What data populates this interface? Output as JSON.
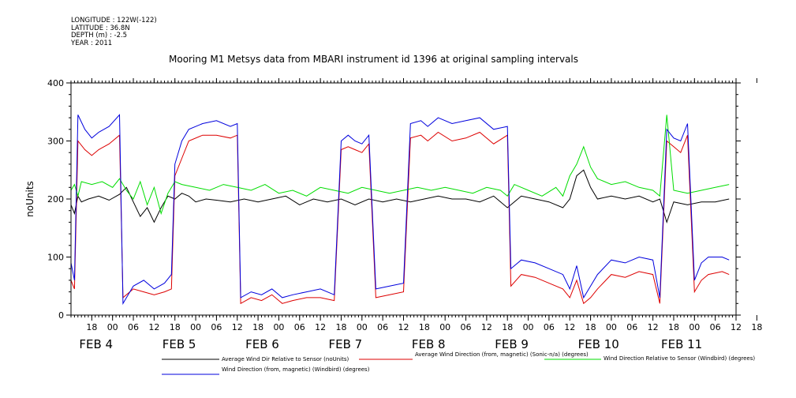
{
  "metadata": {
    "longitude": "LONGITUDE : 122W(-122)",
    "latitude": "LATITUDE : 36.8N",
    "depth": "DEPTH (m) : -2.5",
    "year": "YEAR : 2011"
  },
  "chart_data": {
    "type": "line",
    "title": "Mooring M1 Metsys data from MBARI instrument id 1396 at original sampling intervals",
    "ylabel": "noUnits",
    "xlabel": "",
    "ylim": [
      0,
      400
    ],
    "yticks": [
      0,
      100,
      200,
      300,
      400
    ],
    "xlim": [
      -6,
      186
    ],
    "hour_ticks": [
      "18",
      "00",
      "06",
      "12",
      "18",
      "00",
      "06",
      "12",
      "18",
      "00",
      "06",
      "12",
      "18",
      "00",
      "06",
      "12",
      "18",
      "00",
      "06",
      "12",
      "18",
      "00",
      "06",
      "12",
      "18",
      "00",
      "06",
      "12",
      "18",
      "00",
      "06",
      "12",
      "18"
    ],
    "day_labels": [
      {
        "label": "FEB  4",
        "x": 0
      },
      {
        "label": "FEB  5",
        "x": 24
      },
      {
        "label": "FEB  6",
        "x": 48
      },
      {
        "label": "FEB  7",
        "x": 72
      },
      {
        "label": "FEB  8",
        "x": 96
      },
      {
        "label": "FEB  9",
        "x": 120
      },
      {
        "label": "FEB 10",
        "x": 144
      },
      {
        "label": "FEB 11",
        "x": 168
      }
    ],
    "grid": false,
    "legend_position": "bottom",
    "series": [
      {
        "name": "Average Wind Dir Relative to Sensor (noUnits)",
        "color": "#000000",
        "points": [
          [
            -6,
            190
          ],
          [
            -5,
            175
          ],
          [
            -4,
            205
          ],
          [
            -3,
            195
          ],
          [
            -1,
            200
          ],
          [
            2,
            205
          ],
          [
            5,
            198
          ],
          [
            8,
            208
          ],
          [
            10,
            220
          ],
          [
            12,
            195
          ],
          [
            14,
            170
          ],
          [
            16,
            185
          ],
          [
            18,
            160
          ],
          [
            20,
            185
          ],
          [
            22,
            205
          ],
          [
            24,
            200
          ],
          [
            26,
            210
          ],
          [
            28,
            205
          ],
          [
            30,
            195
          ],
          [
            33,
            200
          ],
          [
            36,
            198
          ],
          [
            40,
            195
          ],
          [
            44,
            200
          ],
          [
            48,
            195
          ],
          [
            52,
            200
          ],
          [
            56,
            205
          ],
          [
            60,
            190
          ],
          [
            64,
            200
          ],
          [
            68,
            195
          ],
          [
            72,
            200
          ],
          [
            76,
            190
          ],
          [
            80,
            200
          ],
          [
            84,
            195
          ],
          [
            88,
            200
          ],
          [
            92,
            195
          ],
          [
            96,
            200
          ],
          [
            100,
            205
          ],
          [
            104,
            200
          ],
          [
            108,
            200
          ],
          [
            112,
            195
          ],
          [
            116,
            205
          ],
          [
            120,
            185
          ],
          [
            124,
            205
          ],
          [
            128,
            200
          ],
          [
            132,
            195
          ],
          [
            136,
            185
          ],
          [
            138,
            200
          ],
          [
            140,
            240
          ],
          [
            142,
            250
          ],
          [
            144,
            220
          ],
          [
            146,
            200
          ],
          [
            150,
            205
          ],
          [
            154,
            200
          ],
          [
            158,
            205
          ],
          [
            162,
            195
          ],
          [
            164,
            200
          ],
          [
            166,
            160
          ],
          [
            168,
            195
          ],
          [
            172,
            190
          ],
          [
            176,
            195
          ],
          [
            180,
            195
          ],
          [
            184,
            200
          ]
        ]
      },
      {
        "name": "Average Wind Direction (from, magnetic) (Sonic-n/a) (degrees)",
        "color": "#dd0000",
        "points": [
          [
            -6,
            60
          ],
          [
            -5,
            45
          ],
          [
            -4,
            300
          ],
          [
            -2,
            285
          ],
          [
            0,
            275
          ],
          [
            2,
            285
          ],
          [
            5,
            295
          ],
          [
            8,
            310
          ],
          [
            9,
            30
          ],
          [
            12,
            45
          ],
          [
            15,
            40
          ],
          [
            18,
            35
          ],
          [
            21,
            40
          ],
          [
            23,
            45
          ],
          [
            24,
            240
          ],
          [
            26,
            270
          ],
          [
            28,
            300
          ],
          [
            32,
            310
          ],
          [
            36,
            310
          ],
          [
            40,
            305
          ],
          [
            42,
            310
          ],
          [
            43,
            20
          ],
          [
            46,
            30
          ],
          [
            49,
            25
          ],
          [
            52,
            35
          ],
          [
            55,
            20
          ],
          [
            58,
            25
          ],
          [
            62,
            30
          ],
          [
            66,
            30
          ],
          [
            70,
            25
          ],
          [
            72,
            285
          ],
          [
            74,
            290
          ],
          [
            76,
            285
          ],
          [
            78,
            280
          ],
          [
            80,
            295
          ],
          [
            82,
            30
          ],
          [
            86,
            35
          ],
          [
            90,
            40
          ],
          [
            92,
            305
          ],
          [
            95,
            310
          ],
          [
            97,
            300
          ],
          [
            100,
            315
          ],
          [
            104,
            300
          ],
          [
            108,
            305
          ],
          [
            112,
            315
          ],
          [
            116,
            295
          ],
          [
            120,
            310
          ],
          [
            121,
            50
          ],
          [
            124,
            70
          ],
          [
            128,
            65
          ],
          [
            132,
            55
          ],
          [
            136,
            45
          ],
          [
            138,
            30
          ],
          [
            140,
            60
          ],
          [
            142,
            20
          ],
          [
            144,
            30
          ],
          [
            146,
            45
          ],
          [
            150,
            70
          ],
          [
            154,
            65
          ],
          [
            158,
            75
          ],
          [
            162,
            70
          ],
          [
            164,
            20
          ],
          [
            166,
            300
          ],
          [
            168,
            290
          ],
          [
            170,
            280
          ],
          [
            172,
            310
          ],
          [
            174,
            40
          ],
          [
            176,
            60
          ],
          [
            178,
            70
          ],
          [
            182,
            75
          ],
          [
            184,
            70
          ]
        ]
      },
      {
        "name": "Wind Direction Relative to Sensor (Windbird) (degrees)",
        "color": "#00dd00",
        "points": [
          [
            -6,
            215
          ],
          [
            -5,
            225
          ],
          [
            -4,
            205
          ],
          [
            -3,
            230
          ],
          [
            0,
            225
          ],
          [
            3,
            230
          ],
          [
            6,
            220
          ],
          [
            8,
            235
          ],
          [
            10,
            215
          ],
          [
            12,
            200
          ],
          [
            14,
            230
          ],
          [
            16,
            190
          ],
          [
            18,
            220
          ],
          [
            20,
            175
          ],
          [
            22,
            210
          ],
          [
            24,
            230
          ],
          [
            26,
            225
          ],
          [
            30,
            220
          ],
          [
            34,
            215
          ],
          [
            38,
            225
          ],
          [
            42,
            220
          ],
          [
            46,
            215
          ],
          [
            50,
            225
          ],
          [
            54,
            210
          ],
          [
            58,
            215
          ],
          [
            62,
            205
          ],
          [
            66,
            220
          ],
          [
            70,
            215
          ],
          [
            74,
            210
          ],
          [
            78,
            220
          ],
          [
            82,
            215
          ],
          [
            86,
            210
          ],
          [
            90,
            215
          ],
          [
            94,
            220
          ],
          [
            98,
            215
          ],
          [
            102,
            220
          ],
          [
            106,
            215
          ],
          [
            110,
            210
          ],
          [
            114,
            220
          ],
          [
            118,
            215
          ],
          [
            120,
            205
          ],
          [
            122,
            225
          ],
          [
            126,
            215
          ],
          [
            130,
            205
          ],
          [
            134,
            220
          ],
          [
            136,
            205
          ],
          [
            138,
            240
          ],
          [
            140,
            260
          ],
          [
            142,
            290
          ],
          [
            144,
            255
          ],
          [
            146,
            235
          ],
          [
            150,
            225
          ],
          [
            154,
            230
          ],
          [
            158,
            220
          ],
          [
            162,
            215
          ],
          [
            164,
            205
          ],
          [
            166,
            345
          ],
          [
            168,
            215
          ],
          [
            172,
            210
          ],
          [
            176,
            215
          ],
          [
            180,
            220
          ],
          [
            184,
            225
          ]
        ]
      },
      {
        "name": "Wind Direction (from, magnetic) (Windbird) (degrees)",
        "color": "#0000dd",
        "points": [
          [
            -6,
            90
          ],
          [
            -5,
            60
          ],
          [
            -4,
            345
          ],
          [
            -2,
            320
          ],
          [
            0,
            305
          ],
          [
            2,
            315
          ],
          [
            5,
            325
          ],
          [
            8,
            345
          ],
          [
            9,
            20
          ],
          [
            12,
            50
          ],
          [
            15,
            60
          ],
          [
            18,
            45
          ],
          [
            21,
            55
          ],
          [
            23,
            70
          ],
          [
            24,
            260
          ],
          [
            26,
            300
          ],
          [
            28,
            320
          ],
          [
            32,
            330
          ],
          [
            36,
            335
          ],
          [
            40,
            325
          ],
          [
            42,
            330
          ],
          [
            43,
            30
          ],
          [
            46,
            40
          ],
          [
            49,
            35
          ],
          [
            52,
            45
          ],
          [
            55,
            30
          ],
          [
            58,
            35
          ],
          [
            62,
            40
          ],
          [
            66,
            45
          ],
          [
            70,
            35
          ],
          [
            72,
            300
          ],
          [
            74,
            310
          ],
          [
            76,
            300
          ],
          [
            78,
            295
          ],
          [
            80,
            310
          ],
          [
            82,
            45
          ],
          [
            86,
            50
          ],
          [
            90,
            55
          ],
          [
            92,
            330
          ],
          [
            95,
            335
          ],
          [
            97,
            325
          ],
          [
            100,
            340
          ],
          [
            104,
            330
          ],
          [
            108,
            335
          ],
          [
            112,
            340
          ],
          [
            116,
            320
          ],
          [
            120,
            325
          ],
          [
            121,
            80
          ],
          [
            124,
            95
          ],
          [
            128,
            90
          ],
          [
            132,
            80
          ],
          [
            136,
            70
          ],
          [
            138,
            45
          ],
          [
            140,
            85
          ],
          [
            142,
            30
          ],
          [
            144,
            50
          ],
          [
            146,
            70
          ],
          [
            150,
            95
          ],
          [
            154,
            90
          ],
          [
            158,
            100
          ],
          [
            162,
            95
          ],
          [
            164,
            30
          ],
          [
            166,
            320
          ],
          [
            168,
            305
          ],
          [
            170,
            300
          ],
          [
            172,
            330
          ],
          [
            174,
            60
          ],
          [
            176,
            90
          ],
          [
            178,
            100
          ],
          [
            182,
            100
          ],
          [
            184,
            95
          ]
        ]
      }
    ]
  }
}
